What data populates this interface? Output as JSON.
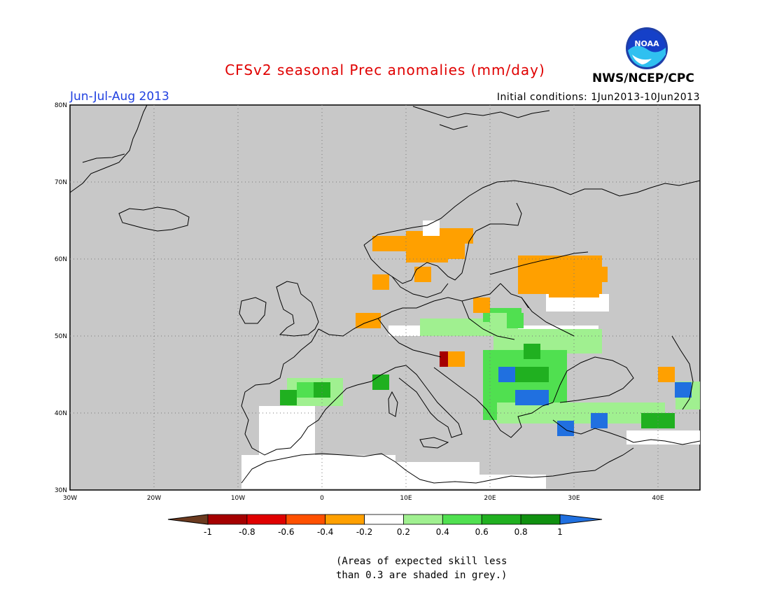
{
  "header": {
    "title": "CFSv2 seasonal Prec anomalies (mm/day)",
    "season": "Jun-Jul-Aug 2013",
    "initial_conditions": "Initial conditions: 1Jun2013-10Jun2013",
    "agency": "NWS/NCEP/CPC",
    "logo_text": "NOAA"
  },
  "colors": {
    "title": "#e00000",
    "season": "#2040e0",
    "map_background": "#c8c8c8",
    "coast": "#000000"
  },
  "axes": {
    "lon_ticks": [
      "30W",
      "20W",
      "10W",
      "0",
      "10E",
      "20E",
      "30E",
      "40E"
    ],
    "lat_ticks": [
      "30N",
      "40N",
      "50N",
      "60N",
      "70N",
      "80N"
    ],
    "lon_range": [
      -30,
      45
    ],
    "lat_range": [
      30,
      80
    ]
  },
  "legend": {
    "labels": [
      "-1",
      "-0.8",
      "-0.6",
      "-0.4",
      "-0.2",
      "0.2",
      "0.4",
      "0.6",
      "0.8",
      "1"
    ],
    "bin_colors": [
      "#6b3a1f",
      "#a50000",
      "#e00000",
      "#ff5000",
      "#ffa000",
      "#ffffff",
      "#a0f090",
      "#50e050",
      "#20b020",
      "#109010",
      "#2070e0"
    ]
  },
  "note": {
    "line1": "(Areas of expected skill less",
    "line2": "than 0.3 are shaded in grey.)"
  },
  "chart_data": {
    "type": "heatmap",
    "description_units": "mm/day",
    "cells": [
      {
        "lon": 7,
        "lat": 62,
        "level": "orange"
      },
      {
        "lon": 9,
        "lat": 62,
        "level": "orange"
      },
      {
        "lon": 11,
        "lat": 62,
        "level": "orange"
      },
      {
        "lon": 13,
        "lat": 64,
        "level": "white"
      },
      {
        "lon": 15,
        "lat": 63,
        "level": "orange"
      },
      {
        "lon": 17,
        "lat": 63,
        "level": "orange"
      },
      {
        "lon": 14,
        "lat": 61,
        "level": "orange"
      },
      {
        "lon": 16,
        "lat": 61,
        "level": "orange"
      },
      {
        "lon": 12,
        "lat": 58,
        "level": "orange"
      },
      {
        "lon": 7,
        "lat": 57,
        "level": "orange"
      },
      {
        "lon": 5,
        "lat": 52,
        "level": "orange"
      },
      {
        "lon": 6,
        "lat": 52,
        "level": "orange"
      },
      {
        "lon": 19,
        "lat": 54,
        "level": "orange"
      },
      {
        "lon": 25,
        "lat": 58,
        "level": "orange"
      },
      {
        "lon": 27,
        "lat": 58,
        "level": "orange"
      },
      {
        "lon": 29,
        "lat": 58,
        "level": "orange"
      },
      {
        "lon": 31,
        "lat": 58,
        "level": "orange"
      },
      {
        "lon": 33,
        "lat": 58,
        "level": "orange"
      },
      {
        "lon": 28,
        "lat": 56,
        "level": "orange"
      },
      {
        "lon": 30,
        "lat": 56,
        "level": "orange"
      },
      {
        "lon": 32,
        "lat": 56,
        "level": "orange"
      },
      {
        "lon": 21,
        "lat": 52,
        "level": "lightgreen"
      },
      {
        "lon": 23,
        "lat": 52,
        "level": "green"
      },
      {
        "lon": 25,
        "lat": 48,
        "level": "darkgreen"
      },
      {
        "lon": 22,
        "lat": 45,
        "level": "blue"
      },
      {
        "lon": 24,
        "lat": 45,
        "level": "darkgreen"
      },
      {
        "lon": 26,
        "lat": 45,
        "level": "darkgreen"
      },
      {
        "lon": 24,
        "lat": 42,
        "level": "blue"
      },
      {
        "lon": 26,
        "lat": 42,
        "level": "blue"
      },
      {
        "lon": 29,
        "lat": 38,
        "level": "blue"
      },
      {
        "lon": 33,
        "lat": 39,
        "level": "blue"
      },
      {
        "lon": 43,
        "lat": 43,
        "level": "blue"
      },
      {
        "lon": 15,
        "lat": 47,
        "level": "darkred"
      },
      {
        "lon": 16,
        "lat": 47,
        "level": "orange"
      },
      {
        "lon": -4,
        "lat": 42,
        "level": "darkgreen"
      },
      {
        "lon": -2,
        "lat": 43,
        "level": "green"
      },
      {
        "lon": 0,
        "lat": 43,
        "level": "darkgreen"
      },
      {
        "lon": 7,
        "lat": 44,
        "level": "darkgreen"
      },
      {
        "lon": 39,
        "lat": 39,
        "level": "darkgreen"
      },
      {
        "lon": 41,
        "lat": 39,
        "level": "darkgreen"
      },
      {
        "lon": 41,
        "lat": 45,
        "level": "orange"
      }
    ]
  }
}
